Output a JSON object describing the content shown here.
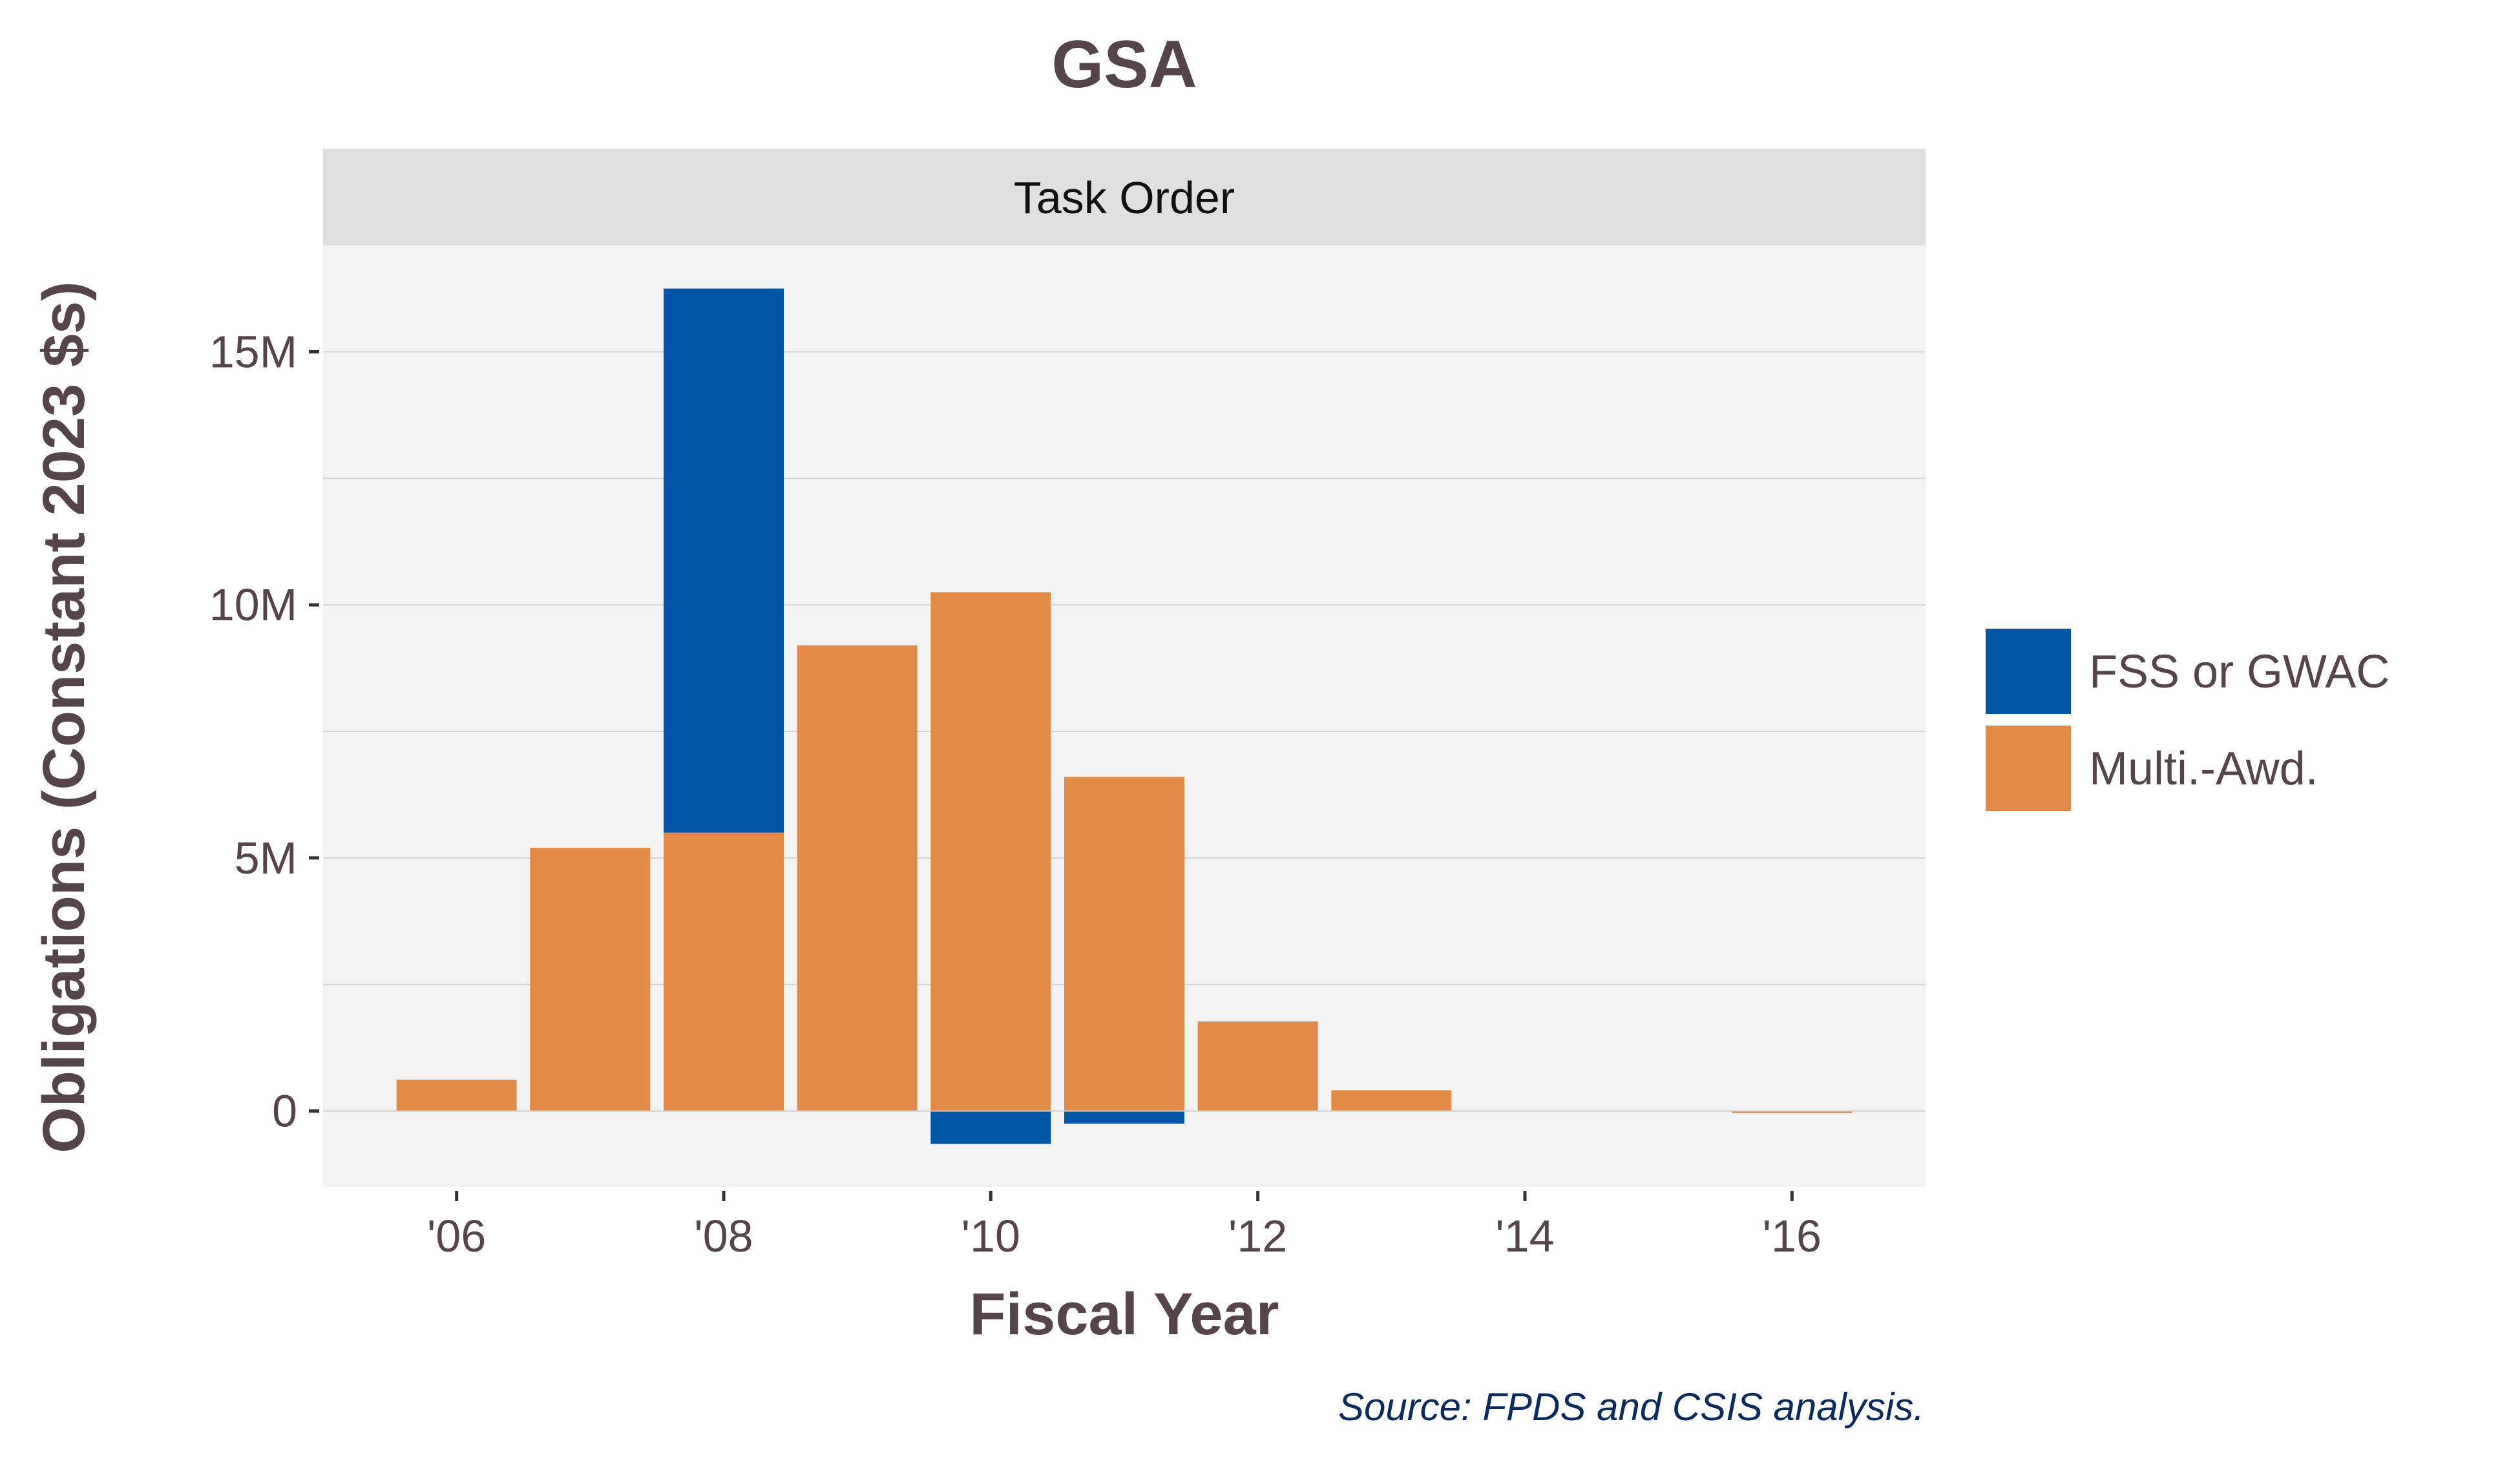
{
  "chart_data": {
    "type": "bar",
    "stacked": true,
    "title": "GSA",
    "facet_label": "Task Order",
    "xlabel": "Fiscal Year",
    "ylabel": "Obligations (Constant 2023 $s)",
    "source": "Source: FPDS and CSIS analysis.",
    "x": [
      2006,
      2007,
      2008,
      2009,
      2010,
      2011,
      2012,
      2013,
      2014,
      2015,
      2016
    ],
    "xlim": [
      2005.0,
      2017.0
    ],
    "ylim": [
      -1.5,
      17.1
    ],
    "x_ticks": [
      {
        "value": 2006,
        "label": "'06"
      },
      {
        "value": 2008,
        "label": "'08"
      },
      {
        "value": 2010,
        "label": "'10"
      },
      {
        "value": 2012,
        "label": "'12"
      },
      {
        "value": 2014,
        "label": "'14"
      },
      {
        "value": 2016,
        "label": "'16"
      }
    ],
    "y_ticks": [
      {
        "value": 0,
        "label": "0"
      },
      {
        "value": 5,
        "label": "5M"
      },
      {
        "value": 10,
        "label": "10M"
      },
      {
        "value": 15,
        "label": "15M"
      }
    ],
    "y_unit": "millions of dollars",
    "grid": true,
    "legend_position": "right",
    "series": [
      {
        "name": "FSS or GWAC",
        "color": "#0055A6",
        "values": [
          0,
          0,
          10.75,
          0,
          -0.65,
          -0.25,
          0,
          0,
          0,
          0,
          0
        ]
      },
      {
        "name": "Multi.-Awd.",
        "color": "#E48A47",
        "values": [
          0.62,
          5.2,
          5.5,
          9.2,
          10.25,
          6.6,
          1.77,
          0.41,
          0,
          0,
          -0.04
        ]
      }
    ]
  }
}
